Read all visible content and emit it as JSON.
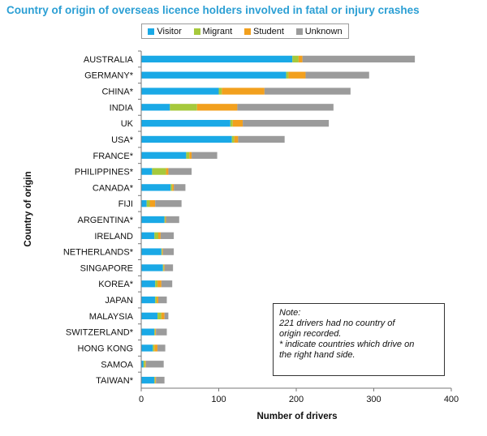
{
  "chart_data": {
    "type": "bar",
    "orientation": "horizontal",
    "stacked": true,
    "title": "Country of origin of overseas licence holders involved in fatal or injury crashes",
    "xlabel": "Number of drivers",
    "ylabel": "Country of origin",
    "xlim": [
      0,
      400
    ],
    "xticks": [
      "0",
      "100",
      "200",
      "300",
      "400"
    ],
    "grid": false,
    "legend_position": "top",
    "categories": [
      "AUSTRALIA",
      "GERMANY*",
      "CHINA*",
      "INDIA",
      "UK",
      "USA*",
      "FRANCE*",
      "PHILIPPINES*",
      "CANADA*",
      "FIJI",
      "ARGENTINA*",
      "IRELAND",
      "NETHERLANDS*",
      "SINGAPORE",
      "KOREA*",
      "JAPAN",
      "MALAYSIA",
      "SWITZERLAND*",
      "HONG KONG",
      "SAMOA",
      "TAIWAN*"
    ],
    "series": [
      {
        "name": "Visitor",
        "color": "#1aa9e6",
        "values": [
          195,
          187,
          100,
          37,
          115,
          117,
          58,
          14,
          38,
          7,
          30,
          17,
          26,
          28,
          18,
          18,
          21,
          17,
          15,
          3,
          17
        ]
      },
      {
        "name": "Migrant",
        "color": "#a6c93c",
        "values": [
          8,
          3,
          4,
          35,
          3,
          3,
          4,
          18,
          2,
          4,
          1,
          5,
          1,
          1,
          3,
          2,
          5,
          1,
          2,
          2,
          1
        ]
      },
      {
        "name": "Student",
        "color": "#f2a01e",
        "values": [
          5,
          22,
          55,
          52,
          13,
          5,
          3,
          3,
          2,
          7,
          1,
          3,
          1,
          1,
          5,
          2,
          4,
          1,
          4,
          1,
          1
        ]
      },
      {
        "name": "Unknown",
        "color": "#9b9b9b",
        "values": [
          145,
          82,
          111,
          124,
          111,
          60,
          33,
          30,
          15,
          34,
          17,
          17,
          14,
          11,
          14,
          11,
          5,
          14,
          10,
          23,
          11
        ]
      }
    ]
  },
  "note": {
    "heading": "Note:",
    "lines": [
      "221 drivers had no country of",
      "origin recorded.",
      "* indicate countries which drive on",
      "the right hand side."
    ]
  }
}
